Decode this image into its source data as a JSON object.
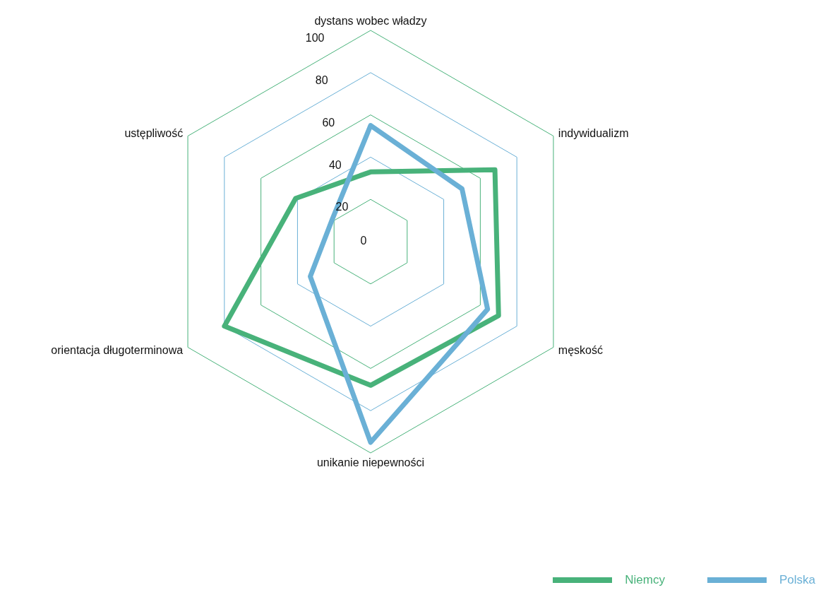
{
  "chart_data": {
    "type": "radar",
    "categories": [
      "dystans wobec władzy",
      "indywidualizm",
      "męskość",
      "unikanie niepewności",
      "orientacja długoterminowa",
      "ustępliwość"
    ],
    "series": [
      {
        "name": "Niemcy",
        "color": "#48b27a",
        "values": [
          33,
          68,
          70,
          68,
          80,
          41
        ]
      },
      {
        "name": "Polska",
        "color": "#6ab0d6",
        "values": [
          55,
          50,
          64,
          95,
          33,
          21
        ]
      }
    ],
    "ylim": [
      0,
      100
    ],
    "yticks": [
      0,
      20,
      40,
      60,
      80,
      100
    ],
    "grid": true,
    "legend": "bottom right"
  }
}
